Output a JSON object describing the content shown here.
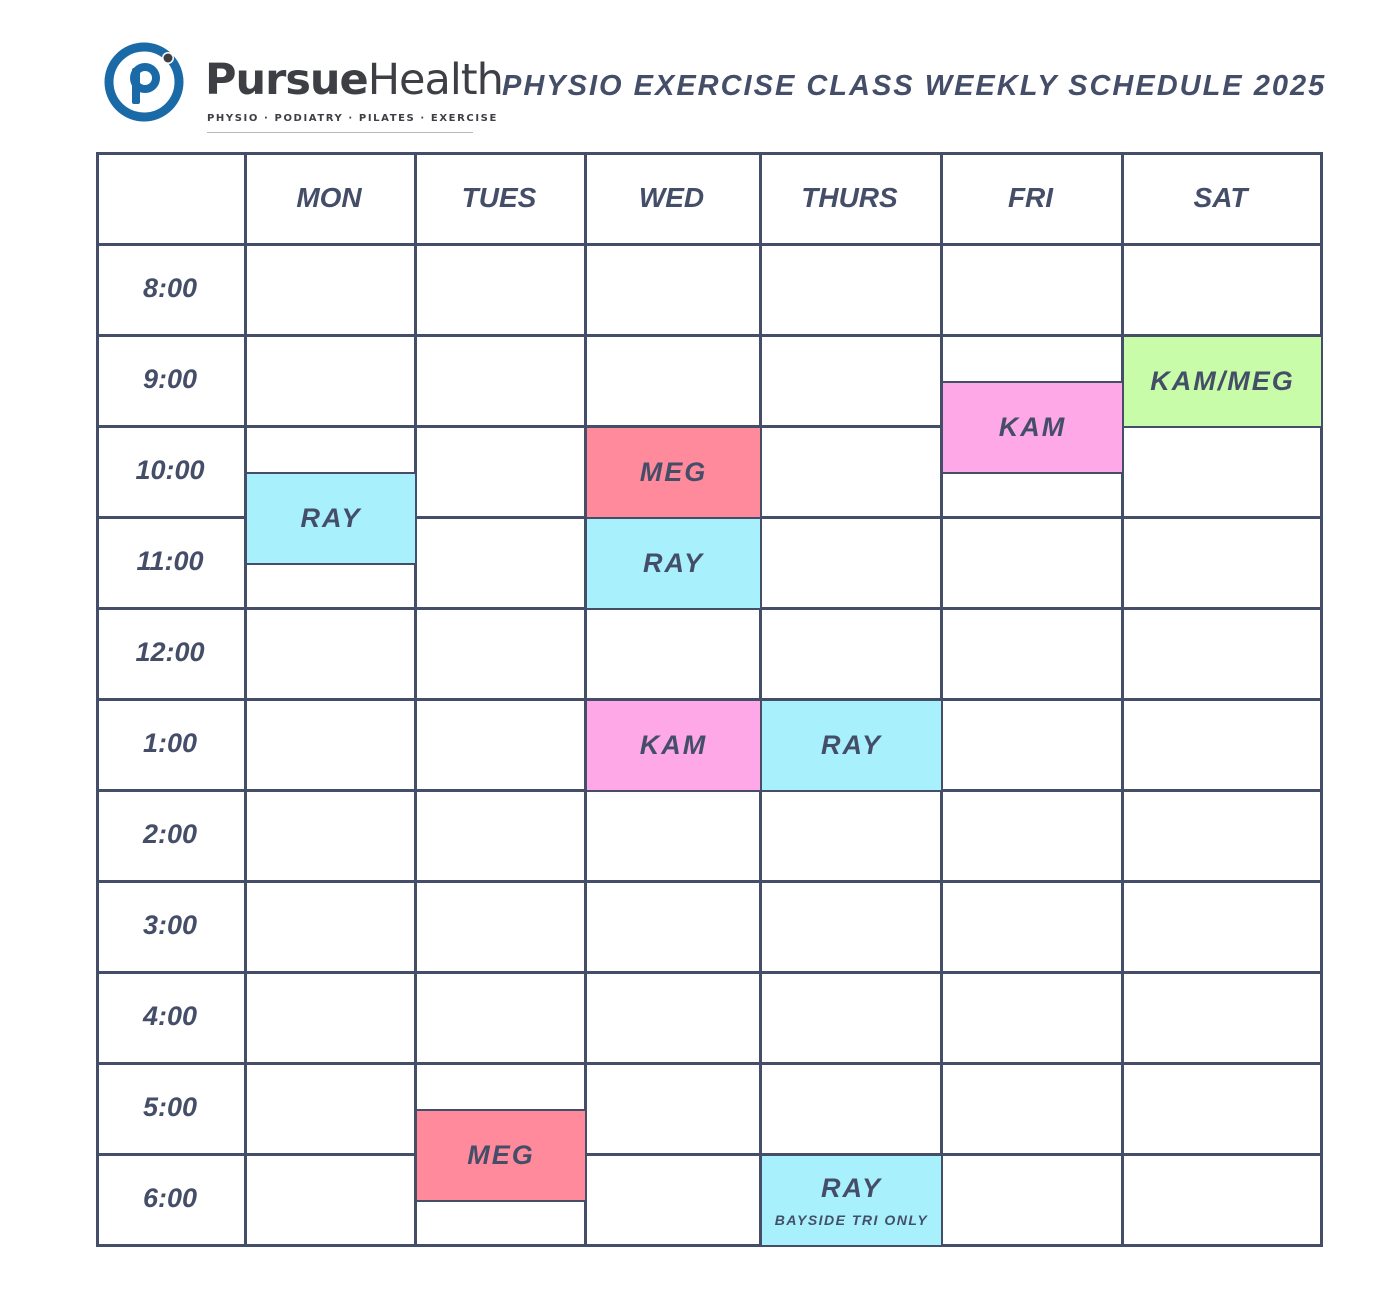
{
  "header": {
    "brand_bold": "Pursue",
    "brand_light": "Health",
    "tagline": "PHYSIO · PODIATRY · PILATES · EXERCISE",
    "title": "PHYSIO EXERCISE CLASS WEEKLY SCHEDULE 2025",
    "brand_color": "#1a6aa8"
  },
  "schedule": {
    "days": [
      "MON",
      "TUES",
      "WED",
      "THURS",
      "FRI",
      "SAT"
    ],
    "times": [
      "8:00",
      "9:00",
      "10:00",
      "11:00",
      "12:00",
      "1:00",
      "2:00",
      "3:00",
      "4:00",
      "5:00",
      "6:00"
    ],
    "classes": [
      {
        "day": "MON",
        "start": "10:30",
        "end": "11:30",
        "instructor": "RAY",
        "note": "",
        "color": "#a8f0fc"
      },
      {
        "day": "TUES",
        "start": "5:30",
        "end": "6:30",
        "instructor": "MEG",
        "note": "",
        "color": "#ff8a9b"
      },
      {
        "day": "WED",
        "start": "10:00",
        "end": "11:00",
        "instructor": "MEG",
        "note": "",
        "color": "#ff8a9b"
      },
      {
        "day": "WED",
        "start": "11:00",
        "end": "12:00",
        "instructor": "RAY",
        "note": "",
        "color": "#a8f0fc"
      },
      {
        "day": "WED",
        "start": "1:00",
        "end": "2:00",
        "instructor": "KAM",
        "note": "",
        "color": "#ffa8e8"
      },
      {
        "day": "THURS",
        "start": "1:00",
        "end": "2:00",
        "instructor": "RAY",
        "note": "",
        "color": "#a8f0fc"
      },
      {
        "day": "THURS",
        "start": "6:00",
        "end": "7:00",
        "instructor": "RAY",
        "note": "BAYSIDE TRI ONLY",
        "color": "#a8f0fc"
      },
      {
        "day": "FRI",
        "start": "9:30",
        "end": "10:30",
        "instructor": "KAM",
        "note": "",
        "color": "#ffa8e8"
      },
      {
        "day": "SAT",
        "start": "9:00",
        "end": "10:00",
        "instructor": "KAM/MEG",
        "note": "",
        "color": "#c8fca8"
      }
    ]
  }
}
